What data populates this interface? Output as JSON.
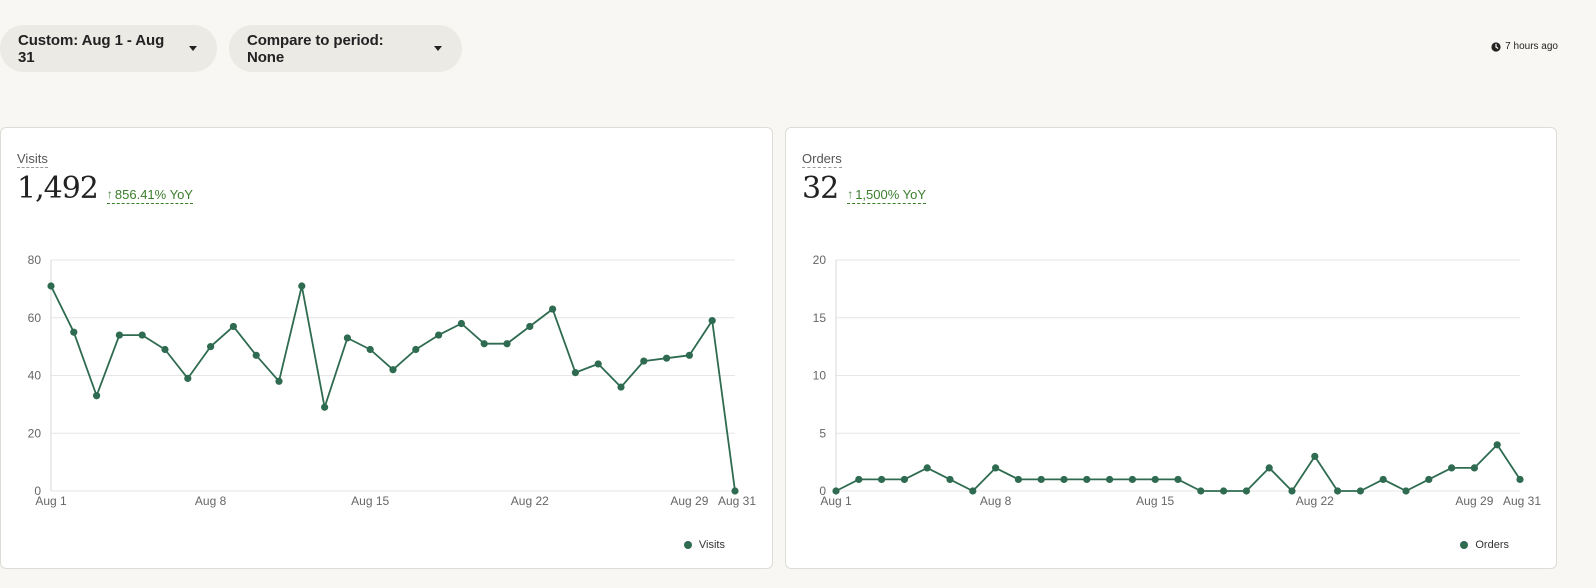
{
  "toolbar": {
    "range_label": "Custom: Aug 1 - Aug 31",
    "compare_label": "Compare to period: None",
    "updated_text": "7 hours ago",
    "clock_icon": "clock-icon"
  },
  "colors": {
    "line": "#2f6b50",
    "positive": "#3a7d2c",
    "grid": "#e6e6e6"
  },
  "visits_card": {
    "label": "Visits",
    "value": "1,492",
    "change": "856.41% YoY",
    "legend": "Visits"
  },
  "orders_card": {
    "label": "Orders",
    "value": "32",
    "change": "1,500% YoY",
    "legend": "Orders"
  },
  "chart_data": [
    {
      "type": "line",
      "name": "visits-chart",
      "x": [
        "Aug 1",
        "Aug 2",
        "Aug 3",
        "Aug 4",
        "Aug 5",
        "Aug 6",
        "Aug 7",
        "Aug 8",
        "Aug 9",
        "Aug 10",
        "Aug 11",
        "Aug 12",
        "Aug 13",
        "Aug 14",
        "Aug 15",
        "Aug 16",
        "Aug 17",
        "Aug 18",
        "Aug 19",
        "Aug 20",
        "Aug 21",
        "Aug 22",
        "Aug 23",
        "Aug 24",
        "Aug 25",
        "Aug 26",
        "Aug 27",
        "Aug 28",
        "Aug 29",
        "Aug 30",
        "Aug 31"
      ],
      "x_ticks": [
        "Aug 1",
        "Aug 8",
        "Aug 15",
        "Aug 22",
        "Aug 29",
        "Aug 31"
      ],
      "y_ticks": [
        0,
        20,
        40,
        60,
        80
      ],
      "ylim": [
        0,
        80
      ],
      "series": [
        {
          "name": "Visits",
          "values": [
            71,
            55,
            33,
            54,
            54,
            49,
            39,
            50,
            57,
            47,
            38,
            71,
            29,
            53,
            49,
            42,
            49,
            54,
            58,
            51,
            51,
            57,
            63,
            41,
            44,
            36,
            45,
            46,
            47,
            59,
            0
          ]
        }
      ],
      "grid": true,
      "legend": "bottom-right"
    },
    {
      "type": "line",
      "name": "orders-chart",
      "x": [
        "Aug 1",
        "Aug 2",
        "Aug 3",
        "Aug 4",
        "Aug 5",
        "Aug 6",
        "Aug 7",
        "Aug 8",
        "Aug 9",
        "Aug 10",
        "Aug 11",
        "Aug 12",
        "Aug 13",
        "Aug 14",
        "Aug 15",
        "Aug 16",
        "Aug 17",
        "Aug 18",
        "Aug 19",
        "Aug 20",
        "Aug 21",
        "Aug 22",
        "Aug 23",
        "Aug 24",
        "Aug 25",
        "Aug 26",
        "Aug 27",
        "Aug 28",
        "Aug 29",
        "Aug 30",
        "Aug 31"
      ],
      "x_ticks": [
        "Aug 1",
        "Aug 8",
        "Aug 15",
        "Aug 22",
        "Aug 29",
        "Aug 31"
      ],
      "y_ticks": [
        0,
        5,
        10,
        15,
        20
      ],
      "ylim": [
        0,
        20
      ],
      "series": [
        {
          "name": "Orders",
          "values": [
            0,
            1,
            1,
            1,
            2,
            1,
            0,
            2,
            1,
            1,
            1,
            1,
            1,
            1,
            1,
            1,
            0,
            0,
            0,
            2,
            0,
            3,
            0,
            0,
            1,
            0,
            1,
            2,
            2,
            4,
            1
          ]
        }
      ],
      "grid": true,
      "legend": "bottom-right"
    }
  ]
}
